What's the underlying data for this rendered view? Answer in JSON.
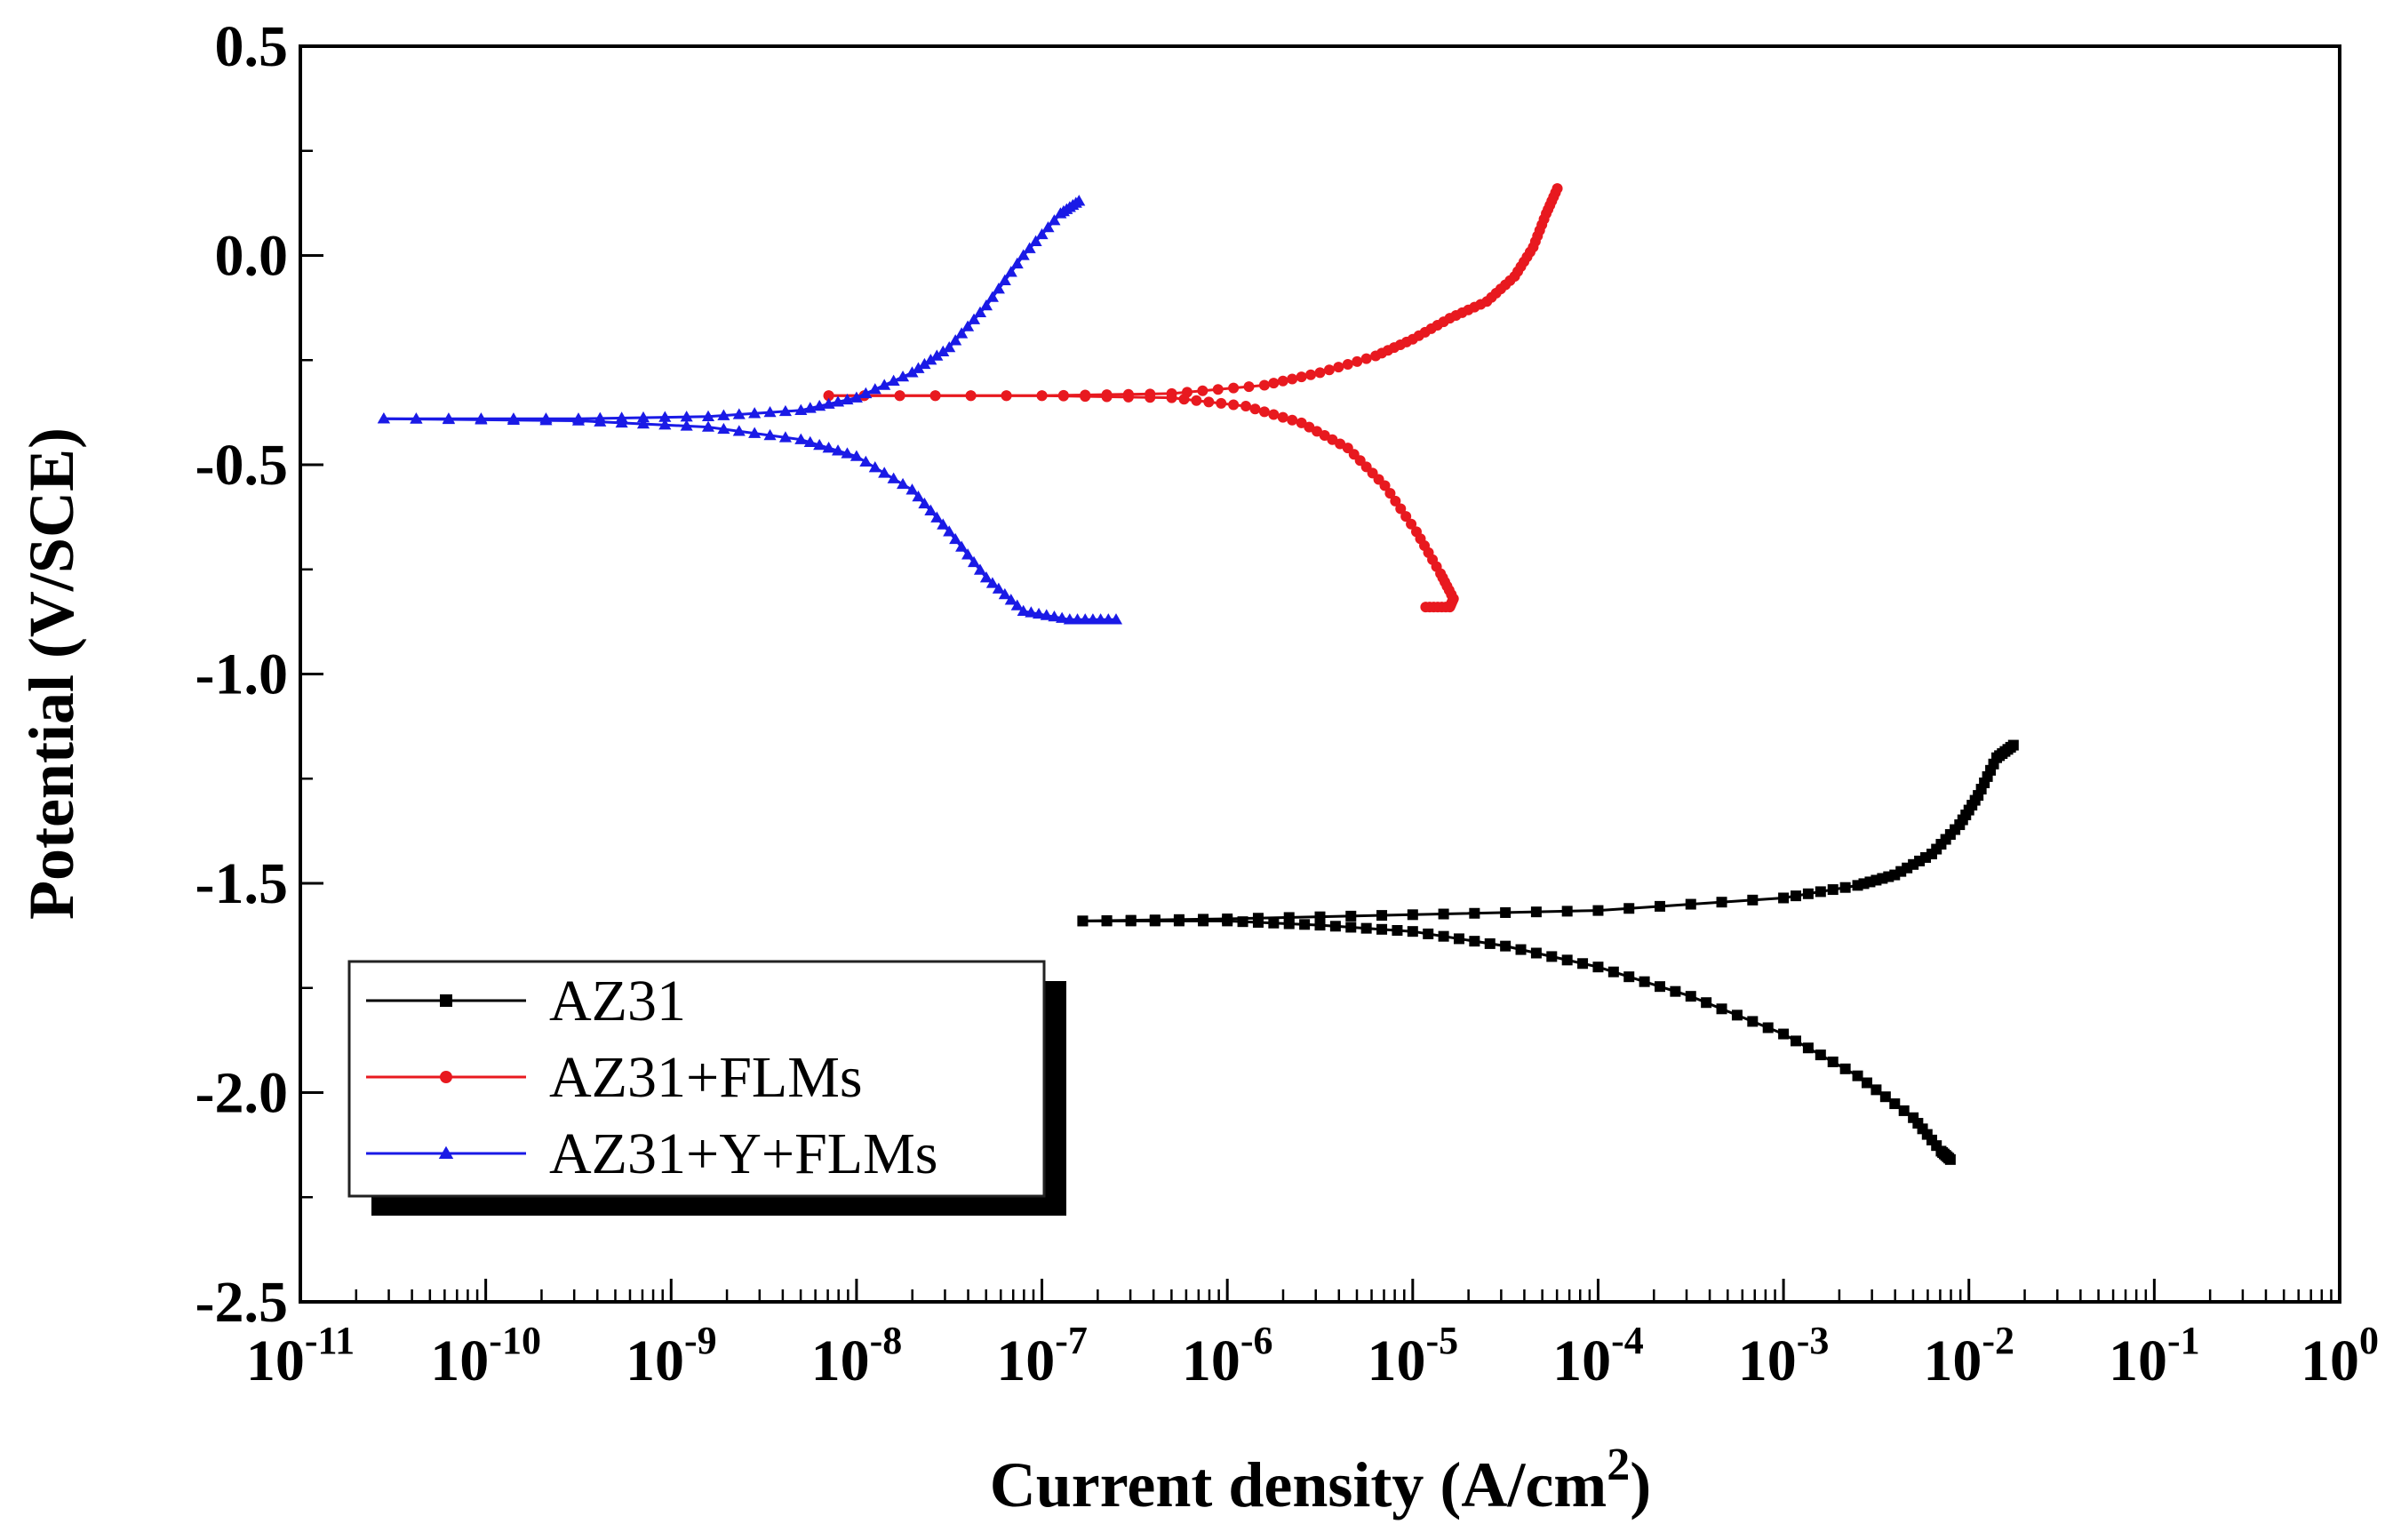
{
  "chart_data": {
    "type": "line",
    "title": "",
    "xlabel": "Current density (A/cm",
    "xlabel_sup": "2",
    "xlabel_close": ")",
    "ylabel": "Potential (V/SCE)",
    "xscale": "log",
    "xlim": [
      1e-11,
      1
    ],
    "ylim": [
      -2.5,
      0.5
    ],
    "grid": false,
    "legend_position": "lower-left",
    "x_ticks": [
      {
        "base": "10",
        "exp": "-11"
      },
      {
        "base": "10",
        "exp": "-10"
      },
      {
        "base": "10",
        "exp": "-9"
      },
      {
        "base": "10",
        "exp": "-8"
      },
      {
        "base": "10",
        "exp": "-7"
      },
      {
        "base": "10",
        "exp": "-6"
      },
      {
        "base": "10",
        "exp": "-5"
      },
      {
        "base": "10",
        "exp": "-4"
      },
      {
        "base": "10",
        "exp": "-3"
      },
      {
        "base": "10",
        "exp": "-2"
      },
      {
        "base": "10",
        "exp": "-1"
      },
      {
        "base": "10",
        "exp": "0"
      }
    ],
    "y_ticks": [
      "0.5",
      "0.0",
      "-0.5",
      "-1.0",
      "-1.5",
      "-2.0",
      "-2.5"
    ],
    "y_tick_values": [
      0.5,
      0.0,
      -0.5,
      -1.0,
      -1.5,
      -2.0,
      -2.5
    ],
    "series": [
      {
        "name": "AZ31",
        "color": "#000000",
        "marker": "square",
        "anodic": [
          [
            -6.78,
            -1.59
          ],
          [
            -6.0,
            -1.585
          ],
          [
            -5.0,
            -1.575
          ],
          [
            -4.0,
            -1.565
          ],
          [
            -3.0,
            -1.535
          ],
          [
            -2.6,
            -1.505
          ],
          [
            -2.4,
            -1.48
          ],
          [
            -2.2,
            -1.43
          ],
          [
            -2.05,
            -1.36
          ],
          [
            -1.95,
            -1.29
          ],
          [
            -1.85,
            -1.2
          ],
          [
            -1.76,
            -1.17
          ]
        ],
        "cathodic": [
          [
            -6.78,
            -1.59
          ],
          [
            -6.0,
            -1.59
          ],
          [
            -5.5,
            -1.6
          ],
          [
            -5.0,
            -1.615
          ],
          [
            -4.5,
            -1.65
          ],
          [
            -4.0,
            -1.7
          ],
          [
            -3.5,
            -1.77
          ],
          [
            -3.0,
            -1.86
          ],
          [
            -2.6,
            -1.96
          ],
          [
            -2.3,
            -2.06
          ],
          [
            -2.15,
            -2.14
          ],
          [
            -2.1,
            -2.16
          ]
        ]
      },
      {
        "name": "AZ31+FLMs",
        "color": "#e8191f",
        "marker": "circle",
        "anodic": [
          [
            -8.15,
            -0.335
          ],
          [
            -7.0,
            -0.335
          ],
          [
            -6.3,
            -0.33
          ],
          [
            -5.8,
            -0.31
          ],
          [
            -5.5,
            -0.28
          ],
          [
            -5.2,
            -0.24
          ],
          [
            -5.0,
            -0.2
          ],
          [
            -4.8,
            -0.15
          ],
          [
            -4.6,
            -0.11
          ],
          [
            -4.45,
            -0.05
          ],
          [
            -4.35,
            0.02
          ],
          [
            -4.28,
            0.1
          ],
          [
            -4.22,
            0.16
          ]
        ],
        "cathodic": [
          [
            -8.15,
            -0.335
          ],
          [
            -7.0,
            -0.335
          ],
          [
            -6.3,
            -0.34
          ],
          [
            -5.9,
            -0.36
          ],
          [
            -5.6,
            -0.4
          ],
          [
            -5.35,
            -0.46
          ],
          [
            -5.15,
            -0.55
          ],
          [
            -4.98,
            -0.66
          ],
          [
            -4.85,
            -0.76
          ],
          [
            -4.78,
            -0.82
          ],
          [
            -4.8,
            -0.84
          ],
          [
            -4.93,
            -0.84
          ]
        ]
      },
      {
        "name": "AZ31+Y+FLMs",
        "color": "#1a1ae6",
        "marker": "triangle",
        "anodic": [
          [
            -10.55,
            -0.39
          ],
          [
            -9.5,
            -0.39
          ],
          [
            -8.8,
            -0.385
          ],
          [
            -8.3,
            -0.37
          ],
          [
            -8.0,
            -0.34
          ],
          [
            -7.7,
            -0.28
          ],
          [
            -7.5,
            -0.22
          ],
          [
            -7.3,
            -0.12
          ],
          [
            -7.1,
            0.0
          ],
          [
            -6.9,
            0.1
          ],
          [
            -6.8,
            0.13
          ]
        ],
        "cathodic": [
          [
            -10.55,
            -0.39
          ],
          [
            -9.5,
            -0.395
          ],
          [
            -8.8,
            -0.41
          ],
          [
            -8.3,
            -0.44
          ],
          [
            -8.0,
            -0.48
          ],
          [
            -7.7,
            -0.56
          ],
          [
            -7.5,
            -0.66
          ],
          [
            -7.3,
            -0.77
          ],
          [
            -7.1,
            -0.85
          ],
          [
            -6.85,
            -0.87
          ],
          [
            -6.6,
            -0.87
          ]
        ]
      }
    ]
  }
}
